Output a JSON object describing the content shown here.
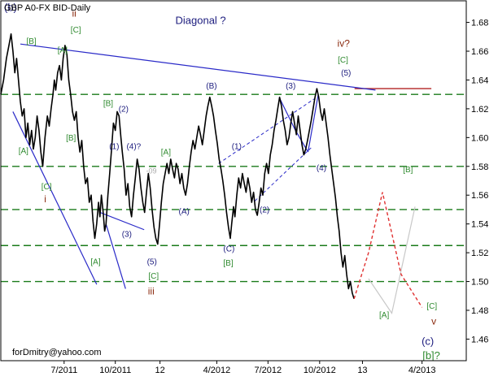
{
  "chart_data": {
    "type": "line",
    "title": "GBP A0-FX BID-Daily",
    "annotation_title": "Diagonal ?",
    "footer": "forDmitry@yahoo.com",
    "ylim": [
      1.445,
      1.695
    ],
    "xlim": [
      0,
      100
    ],
    "y_ticks": [
      {
        "value": 1.68,
        "label": "1.68"
      },
      {
        "value": 1.66,
        "label": "1.66"
      },
      {
        "value": 1.64,
        "label": "1.64"
      },
      {
        "value": 1.62,
        "label": "1.62"
      },
      {
        "value": 1.6,
        "label": "1.60"
      },
      {
        "value": 1.58,
        "label": "1.58"
      },
      {
        "value": 1.56,
        "label": "1.56"
      },
      {
        "value": 1.54,
        "label": "1.54"
      },
      {
        "value": 1.52,
        "label": "1.52"
      },
      {
        "value": 1.5,
        "label": "1.50"
      },
      {
        "value": 1.48,
        "label": "1.48"
      },
      {
        "value": 1.46,
        "label": "1.46"
      }
    ],
    "x_ticks": [
      {
        "pos": 13.6,
        "label": "7/2011"
      },
      {
        "pos": 24.6,
        "label": "10/2011"
      },
      {
        "pos": 34.2,
        "label": "12"
      },
      {
        "pos": 46.4,
        "label": "4/2012"
      },
      {
        "pos": 57.4,
        "label": "7/2012"
      },
      {
        "pos": 68.5,
        "label": "10/2012"
      },
      {
        "pos": 77.7,
        "label": "13"
      },
      {
        "pos": 90.5,
        "label": "4/2013"
      }
    ],
    "horizontal_levels": [
      1.63,
      1.58,
      1.55,
      1.525,
      1.5
    ],
    "resistance_level": {
      "value": 1.634,
      "from": 76.0,
      "to": 92.5
    },
    "price_series": {
      "name": "GBP A0-FX BID",
      "points": [
        [
          0.0,
          1.63
        ],
        [
          0.6,
          1.64
        ],
        [
          1.2,
          1.655
        ],
        [
          1.8,
          1.665
        ],
        [
          2.2,
          1.672
        ],
        [
          2.6,
          1.66
        ],
        [
          3.0,
          1.645
        ],
        [
          3.4,
          1.655
        ],
        [
          3.8,
          1.64
        ],
        [
          4.2,
          1.625
        ],
        [
          4.6,
          1.615
        ],
        [
          5.0,
          1.62
        ],
        [
          5.4,
          1.6
        ],
        [
          5.8,
          1.61
        ],
        [
          6.2,
          1.595
        ],
        [
          6.6,
          1.605
        ],
        [
          7.0,
          1.592
        ],
        [
          7.4,
          1.6
        ],
        [
          7.8,
          1.615
        ],
        [
          8.2,
          1.605
        ],
        [
          8.6,
          1.59
        ],
        [
          9.0,
          1.58
        ],
        [
          9.5,
          1.6
        ],
        [
          10.0,
          1.615
        ],
        [
          10.4,
          1.608
        ],
        [
          10.8,
          1.62
        ],
        [
          11.2,
          1.63
        ],
        [
          11.5,
          1.64
        ],
        [
          11.8,
          1.633
        ],
        [
          12.2,
          1.645
        ],
        [
          12.6,
          1.65
        ],
        [
          13.0,
          1.64
        ],
        [
          13.4,
          1.655
        ],
        [
          13.8,
          1.664
        ],
        [
          14.2,
          1.658
        ],
        [
          14.6,
          1.64
        ],
        [
          15.0,
          1.63
        ],
        [
          15.4,
          1.618
        ],
        [
          15.8,
          1.612
        ],
        [
          16.2,
          1.618
        ],
        [
          16.6,
          1.6
        ],
        [
          17.0,
          1.59
        ],
        [
          17.4,
          1.598
        ],
        [
          17.8,
          1.58
        ],
        [
          18.2,
          1.568
        ],
        [
          18.6,
          1.572
        ],
        [
          19.0,
          1.555
        ],
        [
          19.4,
          1.56
        ],
        [
          19.8,
          1.542
        ],
        [
          20.2,
          1.53
        ],
        [
          20.6,
          1.54
        ],
        [
          21.0,
          1.555
        ],
        [
          21.3,
          1.545
        ],
        [
          21.6,
          1.56
        ],
        [
          22.0,
          1.548
        ],
        [
          22.3,
          1.535
        ],
        [
          22.6,
          1.54
        ],
        [
          23.0,
          1.56
        ],
        [
          23.4,
          1.575
        ],
        [
          23.8,
          1.592
        ],
        [
          24.2,
          1.61
        ],
        [
          24.6,
          1.605
        ],
        [
          25.0,
          1.618
        ],
        [
          25.4,
          1.615
        ],
        [
          25.8,
          1.6
        ],
        [
          26.1,
          1.59
        ],
        [
          26.5,
          1.578
        ],
        [
          26.9,
          1.56
        ],
        [
          27.3,
          1.568
        ],
        [
          27.7,
          1.552
        ],
        [
          28.1,
          1.545
        ],
        [
          28.5,
          1.56
        ],
        [
          28.9,
          1.572
        ],
        [
          29.3,
          1.585
        ],
        [
          29.7,
          1.578
        ],
        [
          30.1,
          1.565
        ],
        [
          30.5,
          1.555
        ],
        [
          30.9,
          1.548
        ],
        [
          31.3,
          1.562
        ],
        [
          31.7,
          1.575
        ],
        [
          32.1,
          1.565
        ],
        [
          32.5,
          1.55
        ],
        [
          32.9,
          1.538
        ],
        [
          33.3,
          1.53
        ],
        [
          33.7,
          1.526
        ],
        [
          34.1,
          1.54
        ],
        [
          34.5,
          1.555
        ],
        [
          34.9,
          1.568
        ],
        [
          35.3,
          1.575
        ],
        [
          35.7,
          1.582
        ],
        [
          36.1,
          1.575
        ],
        [
          36.5,
          1.585
        ],
        [
          36.9,
          1.578
        ],
        [
          37.3,
          1.572
        ],
        [
          37.7,
          1.582
        ],
        [
          38.1,
          1.578
        ],
        [
          38.5,
          1.568
        ],
        [
          38.9,
          1.575
        ],
        [
          39.3,
          1.565
        ],
        [
          39.7,
          1.56
        ],
        [
          40.1,
          1.568
        ],
        [
          40.5,
          1.58
        ],
        [
          40.9,
          1.59
        ],
        [
          41.3,
          1.598
        ],
        [
          41.7,
          1.592
        ],
        [
          42.1,
          1.6
        ],
        [
          42.5,
          1.608
        ],
        [
          42.9,
          1.602
        ],
        [
          43.3,
          1.595
        ],
        [
          43.7,
          1.605
        ],
        [
          44.1,
          1.615
        ],
        [
          44.5,
          1.622
        ],
        [
          44.9,
          1.628
        ],
        [
          45.3,
          1.622
        ],
        [
          45.7,
          1.615
        ],
        [
          46.1,
          1.605
        ],
        [
          46.5,
          1.596
        ],
        [
          46.9,
          1.585
        ],
        [
          47.3,
          1.578
        ],
        [
          47.7,
          1.57
        ],
        [
          48.1,
          1.56
        ],
        [
          48.5,
          1.548
        ],
        [
          48.9,
          1.538
        ],
        [
          49.3,
          1.53
        ],
        [
          49.6,
          1.54
        ],
        [
          50.0,
          1.552
        ],
        [
          50.3,
          1.545
        ],
        [
          50.7,
          1.56
        ],
        [
          51.1,
          1.572
        ],
        [
          51.5,
          1.565
        ],
        [
          51.9,
          1.575
        ],
        [
          52.3,
          1.568
        ],
        [
          52.7,
          1.562
        ],
        [
          53.1,
          1.572
        ],
        [
          53.5,
          1.565
        ],
        [
          53.9,
          1.555
        ],
        [
          54.3,
          1.562
        ],
        [
          54.7,
          1.55
        ],
        [
          55.1,
          1.546
        ],
        [
          55.5,
          1.555
        ],
        [
          55.9,
          1.565
        ],
        [
          56.3,
          1.56
        ],
        [
          56.7,
          1.575
        ],
        [
          57.1,
          1.582
        ],
        [
          57.5,
          1.575
        ],
        [
          57.9,
          1.588
        ],
        [
          58.3,
          1.595
        ],
        [
          58.7,
          1.605
        ],
        [
          59.1,
          1.612
        ],
        [
          59.5,
          1.62
        ],
        [
          59.9,
          1.628
        ],
        [
          60.3,
          1.622
        ],
        [
          60.7,
          1.612
        ],
        [
          61.1,
          1.605
        ],
        [
          61.5,
          1.595
        ],
        [
          61.9,
          1.6
        ],
        [
          62.3,
          1.61
        ],
        [
          62.7,
          1.618
        ],
        [
          63.1,
          1.61
        ],
        [
          63.5,
          1.602
        ],
        [
          63.9,
          1.615
        ],
        [
          64.3,
          1.605
        ],
        [
          64.7,
          1.595
        ],
        [
          65.1,
          1.588
        ],
        [
          65.5,
          1.592
        ],
        [
          65.9,
          1.598
        ],
        [
          66.3,
          1.605
        ],
        [
          66.7,
          1.612
        ],
        [
          67.1,
          1.62
        ],
        [
          67.5,
          1.628
        ],
        [
          67.9,
          1.634
        ],
        [
          68.3,
          1.628
        ],
        [
          68.7,
          1.618
        ],
        [
          69.1,
          1.612
        ],
        [
          69.5,
          1.62
        ],
        [
          69.9,
          1.61
        ],
        [
          70.3,
          1.6
        ],
        [
          70.7,
          1.588
        ],
        [
          71.1,
          1.578
        ],
        [
          71.5,
          1.568
        ],
        [
          71.9,
          1.558
        ],
        [
          72.3,
          1.545
        ],
        [
          72.7,
          1.535
        ],
        [
          73.1,
          1.52
        ],
        [
          73.5,
          1.51
        ],
        [
          73.9,
          1.518
        ],
        [
          74.3,
          1.505
        ],
        [
          74.7,
          1.495
        ],
        [
          75.1,
          1.5
        ],
        [
          75.5,
          1.492
        ],
        [
          75.9,
          1.488
        ]
      ]
    },
    "projection": {
      "red": [
        [
          75.9,
          1.488
        ],
        [
          79.0,
          1.52
        ],
        [
          82.0,
          1.562
        ],
        [
          86.0,
          1.505
        ],
        [
          90.5,
          1.482
        ]
      ],
      "light": [
        [
          79.0,
          1.502
        ],
        [
          84.0,
          1.478
        ],
        [
          89.0,
          1.552
        ]
      ]
    },
    "trendlines": {
      "solid": [
        [
          [
            4.2,
            1.665
          ],
          [
            80.5,
            1.633
          ]
        ],
        [
          [
            2.6,
            1.618
          ],
          [
            20.6,
            1.498
          ]
        ],
        [
          [
            22.6,
            1.54
          ],
          [
            26.8,
            1.495
          ]
        ],
        [
          [
            21.3,
            1.548
          ],
          [
            30.8,
            1.536
          ]
        ],
        [
          [
            59.8,
            1.628
          ],
          [
            63.3,
            1.605
          ]
        ],
        [
          [
            63.3,
            1.605
          ],
          [
            66.0,
            1.59
          ]
        ],
        [
          [
            66.0,
            1.59
          ],
          [
            68.2,
            1.63
          ]
        ]
      ],
      "dashed": [
        [
          [
            46.8,
            1.582
          ],
          [
            67.4,
            1.627
          ]
        ],
        [
          [
            54.6,
            1.556
          ],
          [
            66.7,
            1.593
          ]
        ]
      ]
    },
    "wave_labels": [
      {
        "text": "(b)",
        "x": 0.7,
        "y": 1.688,
        "color": "#1c1c7e",
        "size": 13
      },
      {
        "text": "ii",
        "x": 15.3,
        "y": 1.684,
        "color": "#8b2b10",
        "size": 12
      },
      {
        "text": "[C]",
        "x": 15.0,
        "y": 1.673,
        "color": "#2f8a2f",
        "size": 10
      },
      {
        "text": "[B]",
        "x": 5.5,
        "y": 1.665,
        "color": "#2f8a2f",
        "size": 10
      },
      {
        "text": "[A]",
        "x": 12.2,
        "y": 1.659,
        "color": "#2f8a2f",
        "size": 10
      },
      {
        "text": "Diagonal ?",
        "x": 37.5,
        "y": 1.679,
        "color": "#1c1c7e",
        "size": 13
      },
      {
        "text": "iv?",
        "x": 72.3,
        "y": 1.663,
        "color": "#8b2b10",
        "size": 12
      },
      {
        "text": "[C]",
        "x": 72.4,
        "y": 1.652,
        "color": "#2f8a2f",
        "size": 10
      },
      {
        "text": "(5)",
        "x": 73.1,
        "y": 1.643,
        "color": "#1c1c7e",
        "size": 10
      },
      {
        "text": "(B)",
        "x": 44.1,
        "y": 1.634,
        "color": "#1c1c7e",
        "size": 10
      },
      {
        "text": "(3)",
        "x": 61.2,
        "y": 1.634,
        "color": "#1c1c7e",
        "size": 10
      },
      {
        "text": "[B]",
        "x": 22.0,
        "y": 1.622,
        "color": "#2f8a2f",
        "size": 10
      },
      {
        "text": "(2)",
        "x": 25.3,
        "y": 1.618,
        "color": "#1c1c7e",
        "size": 10
      },
      {
        "text": "[B]",
        "x": 14.0,
        "y": 1.598,
        "color": "#2f8a2f",
        "size": 10
      },
      {
        "text": "[A]",
        "x": 3.8,
        "y": 1.589,
        "color": "#2f8a2f",
        "size": 10
      },
      {
        "text": "(1)",
        "x": 23.3,
        "y": 1.592,
        "color": "#1c1c7e",
        "size": 10
      },
      {
        "text": "(4)?",
        "x": 27.0,
        "y": 1.592,
        "color": "#1c1c7e",
        "size": 10
      },
      {
        "text": "[A]",
        "x": 34.4,
        "y": 1.588,
        "color": "#2f8a2f",
        "size": 10
      },
      {
        "text": "(1)",
        "x": 49.6,
        "y": 1.592,
        "color": "#1c1c7e",
        "size": 10
      },
      {
        "text": "(4)",
        "x": 67.8,
        "y": 1.577,
        "color": "#1c1c7e",
        "size": 10
      },
      {
        "text": "[B]",
        "x": 86.4,
        "y": 1.576,
        "color": "#2f8a2f",
        "size": 10
      },
      {
        "text": "-09",
        "x": 31.2,
        "y": 1.575,
        "color": "#aaaaaa",
        "size": 9
      },
      {
        "text": "[C]",
        "x": 8.7,
        "y": 1.564,
        "color": "#2f8a2f",
        "size": 10
      },
      {
        "text": "i",
        "x": 9.3,
        "y": 1.555,
        "color": "#8b2b10",
        "size": 12
      },
      {
        "text": "(A)",
        "x": 38.2,
        "y": 1.547,
        "color": "#1c1c7e",
        "size": 10
      },
      {
        "text": "(2)",
        "x": 55.6,
        "y": 1.548,
        "color": "#1c1c7e",
        "size": 10
      },
      {
        "text": "(3)",
        "x": 26.0,
        "y": 1.531,
        "color": "#1c1c7e",
        "size": 10
      },
      {
        "text": "(C)",
        "x": 47.8,
        "y": 1.521,
        "color": "#1c1c7e",
        "size": 10
      },
      {
        "text": "[B]",
        "x": 47.8,
        "y": 1.511,
        "color": "#2f8a2f",
        "size": 10
      },
      {
        "text": "[A]",
        "x": 19.3,
        "y": 1.512,
        "color": "#2f8a2f",
        "size": 10
      },
      {
        "text": "(5)",
        "x": 31.4,
        "y": 1.512,
        "color": "#1c1c7e",
        "size": 10
      },
      {
        "text": "[C]",
        "x": 31.7,
        "y": 1.502,
        "color": "#2f8a2f",
        "size": 10
      },
      {
        "text": "iii",
        "x": 31.6,
        "y": 1.491,
        "color": "#8b2b10",
        "size": 12
      },
      {
        "text": "[A]",
        "x": 81.3,
        "y": 1.475,
        "color": "#2f8a2f",
        "size": 10
      },
      {
        "text": "[C]",
        "x": 91.5,
        "y": 1.481,
        "color": "#2f8a2f",
        "size": 10
      },
      {
        "text": "v",
        "x": 92.5,
        "y": 1.47,
        "color": "#8b2b10",
        "size": 12
      },
      {
        "text": "(c)",
        "x": 90.4,
        "y": 1.456,
        "color": "#1c1c7e",
        "size": 13
      },
      {
        "text": "[b]?",
        "x": 90.6,
        "y": 1.446,
        "color": "#2f8a2f",
        "size": 13
      }
    ],
    "colors": {
      "price": "#000000",
      "trendline": "#2a2ac8",
      "level": "#1a7a1a",
      "resistance": "#b22222",
      "projection_red": "#e03030",
      "projection_light": "#c8c8c8",
      "wave_blue": "#1c1c7e",
      "wave_green": "#2f8a2f",
      "wave_red": "#8b2b10"
    },
    "grid": false,
    "legend": "none"
  }
}
